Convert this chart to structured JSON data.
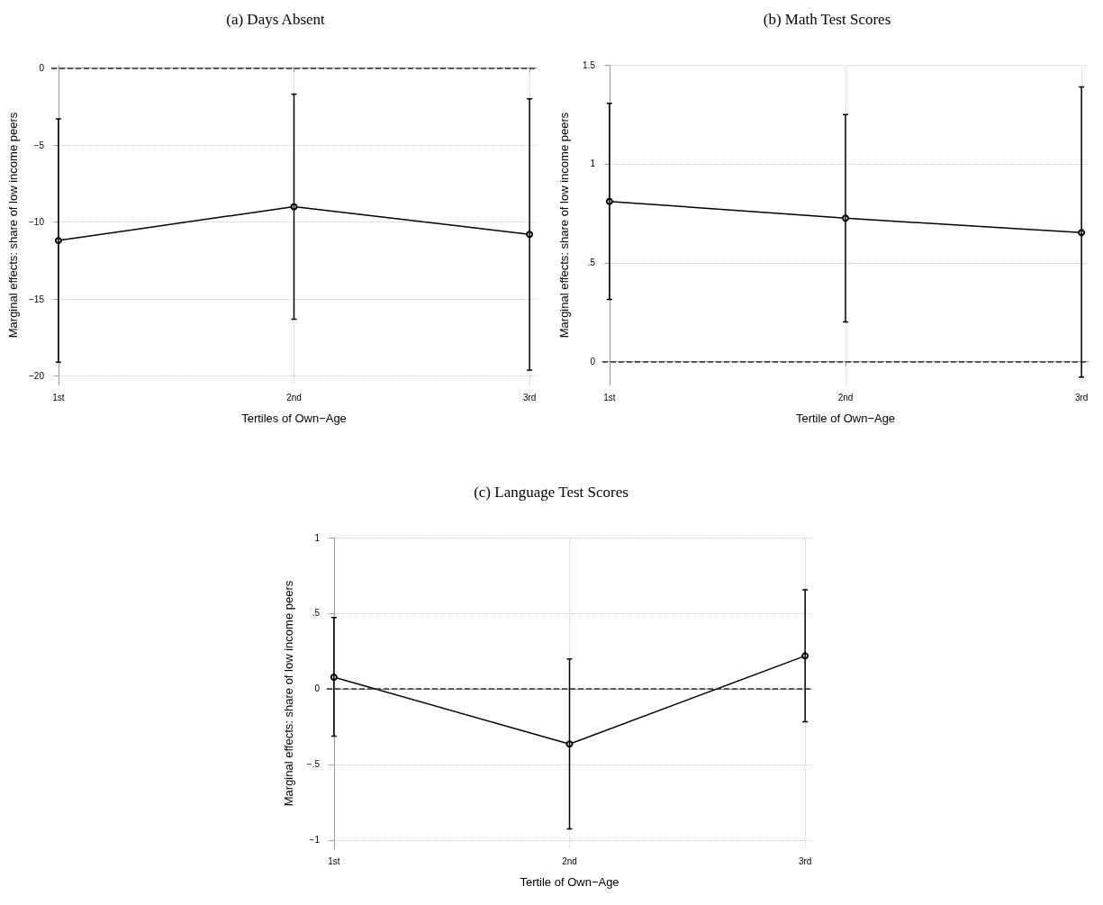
{
  "chart_data": [
    {
      "type": "line",
      "title": "(a) Days Absent",
      "xlabel": "Tertiles of Own−Age",
      "ylabel": "Marginal effects: share of low income peers",
      "categories": [
        "1st",
        "2nd",
        "3rd"
      ],
      "series": [
        {
          "color": "#000000",
          "values": [
            -11.2,
            -9.0,
            -10.8
          ],
          "errors": [
            [
              -19.1,
              -3.3
            ],
            [
              -16.3,
              -1.7
            ],
            [
              -19.6,
              -2.0
            ]
          ]
        }
      ],
      "ylim": [
        -20.6,
        0.2
      ],
      "yticks": [
        {
          "value": -20,
          "label": "−20"
        },
        {
          "value": -15,
          "label": "−15"
        },
        {
          "value": -10,
          "label": "−10"
        },
        {
          "value": -5,
          "label": "−5"
        },
        0
      ],
      "ref_lines": [
        {
          "axis": "y",
          "value": 0,
          "color": "#333333",
          "line_style": "dashed"
        }
      ],
      "grid": true,
      "marker": "circle",
      "line_style": "solid"
    },
    {
      "type": "line",
      "title": "(b) Math Test Scores",
      "xlabel": "Tertile of Own−Age",
      "ylabel": "Marginal effects: share of low income peers",
      "categories": [
        "1st",
        "2nd",
        "3rd"
      ],
      "series": [
        {
          "color": "#000000",
          "values": [
            0.81,
            0.725,
            0.652
          ],
          "errors": [
            [
              0.315,
              1.306
            ],
            [
              0.201,
              1.249
            ],
            [
              -0.078,
              1.388
            ]
          ]
        }
      ],
      "ylim": [
        -0.12,
        1.5
      ],
      "yticks": [
        0,
        {
          "value": 0.5,
          "label": ".5"
        },
        1,
        1.5
      ],
      "ref_lines": [
        {
          "axis": "y",
          "value": 0,
          "color": "#333333",
          "line_style": "dashed"
        }
      ],
      "grid": true,
      "marker": "circle",
      "line_style": "solid"
    },
    {
      "type": "line",
      "title": "(c) Language Test Scores",
      "xlabel": "Tertile of Own−Age",
      "ylabel": "Marginal effects: share of low income peers",
      "categories": [
        "1st",
        "2nd",
        "3rd"
      ],
      "series": [
        {
          "color": "#000000",
          "values": [
            0.077,
            -0.365,
            0.218
          ],
          "errors": [
            [
              -0.313,
              0.472
            ],
            [
              -0.926,
              0.198
            ],
            [
              -0.218,
              0.654
            ]
          ]
        }
      ],
      "ylim": [
        -1.06,
        1.0
      ],
      "yticks": [
        {
          "value": -1,
          "label": "−1"
        },
        {
          "value": -0.5,
          "label": "−.5"
        },
        0,
        {
          "value": 0.5,
          "label": ".5"
        },
        1
      ],
      "ref_lines": [
        {
          "axis": "y",
          "value": 0,
          "color": "#333333",
          "line_style": "dashed"
        }
      ],
      "grid": true,
      "marker": "circle",
      "line_style": "solid"
    }
  ]
}
